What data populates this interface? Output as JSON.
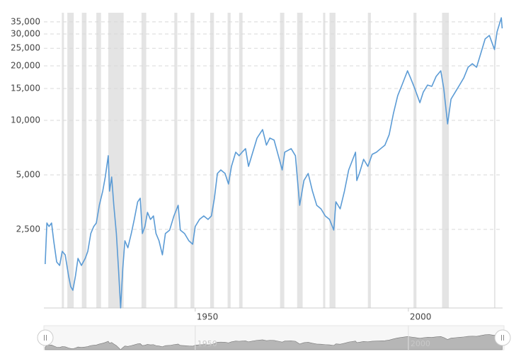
{
  "chart_data": {
    "type": "line",
    "log_scale": true,
    "grid": true,
    "color": "#5b9bd5",
    "recession_color": "#e4e4e4",
    "xlim": [
      1914.5,
      2022.1
    ],
    "xticks": [
      1950,
      2000
    ],
    "ylim": [
      920,
      39300
    ],
    "yticks": [
      {
        "value": 2500,
        "label": "2,500"
      },
      {
        "value": 5000,
        "label": "5,000"
      },
      {
        "value": 10000,
        "label": "10,000"
      },
      {
        "value": 15000,
        "label": "15,000"
      },
      {
        "value": 20000,
        "label": "20,000"
      },
      {
        "value": 25000,
        "label": "25,000"
      },
      {
        "value": 30000,
        "label": "30,000"
      },
      {
        "value": 35000,
        "label": "35,000"
      }
    ],
    "recessions": [
      [
        1918.7,
        1919.2
      ],
      [
        1920.0,
        1921.5
      ],
      [
        1923.4,
        1924.5
      ],
      [
        1926.8,
        1927.9
      ],
      [
        1929.6,
        1933.2
      ],
      [
        1937.4,
        1938.5
      ],
      [
        1945.1,
        1945.8
      ],
      [
        1948.9,
        1949.8
      ],
      [
        1953.5,
        1954.4
      ],
      [
        1957.6,
        1958.3
      ],
      [
        1960.3,
        1961.1
      ],
      [
        1969.9,
        1970.9
      ],
      [
        1973.9,
        1975.2
      ],
      [
        1980.0,
        1980.5
      ],
      [
        1981.5,
        1982.9
      ],
      [
        1990.5,
        1991.2
      ],
      [
        2001.2,
        2001.9
      ],
      [
        2007.9,
        2009.5
      ],
      [
        2020.1,
        2020.4
      ]
    ],
    "x": [
      1914.8,
      1915.2,
      1915.7,
      1916.3,
      1916.8,
      1917.5,
      1918.2,
      1918.8,
      1919.5,
      1920.3,
      1920.8,
      1921.3,
      1921.9,
      1922.5,
      1923.3,
      1924.2,
      1924.8,
      1925.5,
      1926.2,
      1926.8,
      1927.5,
      1928.3,
      1928.9,
      1929.6,
      1929.9,
      1930.4,
      1930.9,
      1931.5,
      1932.0,
      1932.5,
      1933.0,
      1933.5,
      1934.2,
      1935.0,
      1935.7,
      1936.5,
      1937.1,
      1937.6,
      1938.2,
      1938.8,
      1939.5,
      1940.2,
      1940.8,
      1941.5,
      1942.3,
      1943.0,
      1944.0,
      1945.0,
      1946.0,
      1946.5,
      1947.5,
      1948.5,
      1949.4,
      1950.0,
      1951.0,
      1952.0,
      1953.0,
      1953.8,
      1954.5,
      1955.2,
      1956.0,
      1957.0,
      1957.8,
      1958.5,
      1959.5,
      1960.3,
      1961.0,
      1961.8,
      1962.5,
      1963.5,
      1964.5,
      1965.8,
      1966.7,
      1967.5,
      1968.5,
      1969.5,
      1970.4,
      1971.0,
      1972.5,
      1973.5,
      1974.5,
      1975.5,
      1976.5,
      1977.5,
      1978.5,
      1979.5,
      1980.5,
      1981.5,
      1982.5,
      1983.0,
      1984.0,
      1985.0,
      1986.0,
      1987.6,
      1987.9,
      1988.5,
      1989.5,
      1990.5,
      1991.5,
      1992.5,
      1993.5,
      1994.5,
      1995.5,
      1996.5,
      1997.5,
      1998.5,
      1999.8,
      2000.5,
      2001.5,
      2002.7,
      2003.5,
      2004.5,
      2005.5,
      2006.5,
      2007.6,
      2008.3,
      2009.2,
      2010.0,
      2011.0,
      2012.0,
      2013.0,
      2014.0,
      2015.0,
      2016.0,
      2017.0,
      2018.0,
      2019.0,
      2020.2,
      2020.8,
      2021.8,
      2022.0
    ],
    "values": [
      1608,
      2711,
      2594,
      2711,
      2164,
      1652,
      1580,
      1891,
      1808,
      1380,
      1206,
      1153,
      1380,
      1729,
      1580,
      1729,
      1891,
      2371,
      2594,
      2711,
      3396,
      4064,
      4865,
      6381,
      4064,
      4865,
      3396,
      2371,
      1510,
      920,
      1510,
      2164,
      1978,
      2371,
      2837,
      3550,
      3715,
      2371,
      2594,
      3103,
      2837,
      2966,
      2371,
      2164,
      1808,
      2371,
      2478,
      2966,
      3396,
      2478,
      2371,
      2164,
      2070,
      2594,
      2837,
      2966,
      2837,
      2966,
      3715,
      5090,
      5325,
      5090,
      4450,
      5570,
      6670,
      6381,
      6670,
      6980,
      5570,
      6670,
      7985,
      8895,
      7300,
      7985,
      7780,
      6381,
      5325,
      6670,
      6980,
      6381,
      3396,
      4654,
      5090,
      4064,
      3396,
      3245,
      2966,
      2837,
      2478,
      3550,
      3245,
      4064,
      5325,
      6670,
      4654,
      5090,
      6095,
      5570,
      6490,
      6670,
      6980,
      7300,
      8350,
      10940,
      13700,
      15670,
      18780,
      17170,
      14990,
      12520,
      14330,
      15670,
      15410,
      17470,
      18780,
      14990,
      9560,
      13100,
      14330,
      15670,
      17170,
      19640,
      20550,
      19640,
      23500,
      28170,
      29450,
      24600,
      30820,
      36870,
      32220
    ]
  }
}
